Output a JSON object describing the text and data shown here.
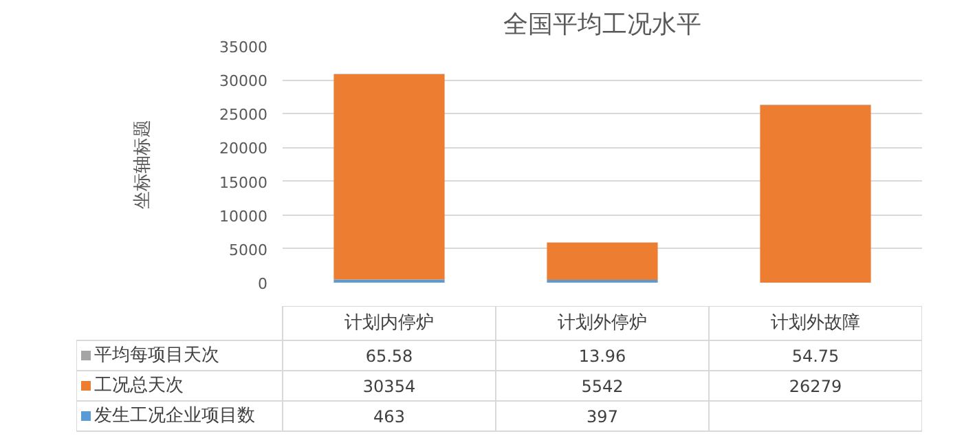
{
  "chart_data": {
    "type": "bar",
    "title": "全国平均工况水平",
    "ylabel": "坐标轴标题",
    "stacked": true,
    "grid": "y",
    "legend": "bottom",
    "categories": [
      "计划内停炉",
      "计划外停炉",
      "计划外故障"
    ],
    "ylim": [
      0,
      35000
    ],
    "yticks": [
      0,
      5000,
      10000,
      15000,
      20000,
      25000,
      30000,
      35000
    ],
    "series": [
      {
        "name": "发生工况企业项目数",
        "color": "#5b9bd5",
        "values": [
          463,
          397,
          null
        ],
        "value_labels": [
          "463",
          "397",
          null
        ]
      },
      {
        "name": "工况总天次",
        "color": "#ed7d31",
        "values": [
          30354,
          5542,
          26279
        ],
        "value_labels": [
          "30354",
          "5542",
          "26279"
        ]
      },
      {
        "name": "平均每项目天次",
        "color": "#a5a5a5",
        "values": [
          65.58,
          13.96,
          54.75
        ],
        "value_labels": [
          "65.58",
          "13.96",
          "54.75"
        ]
      }
    ]
  }
}
